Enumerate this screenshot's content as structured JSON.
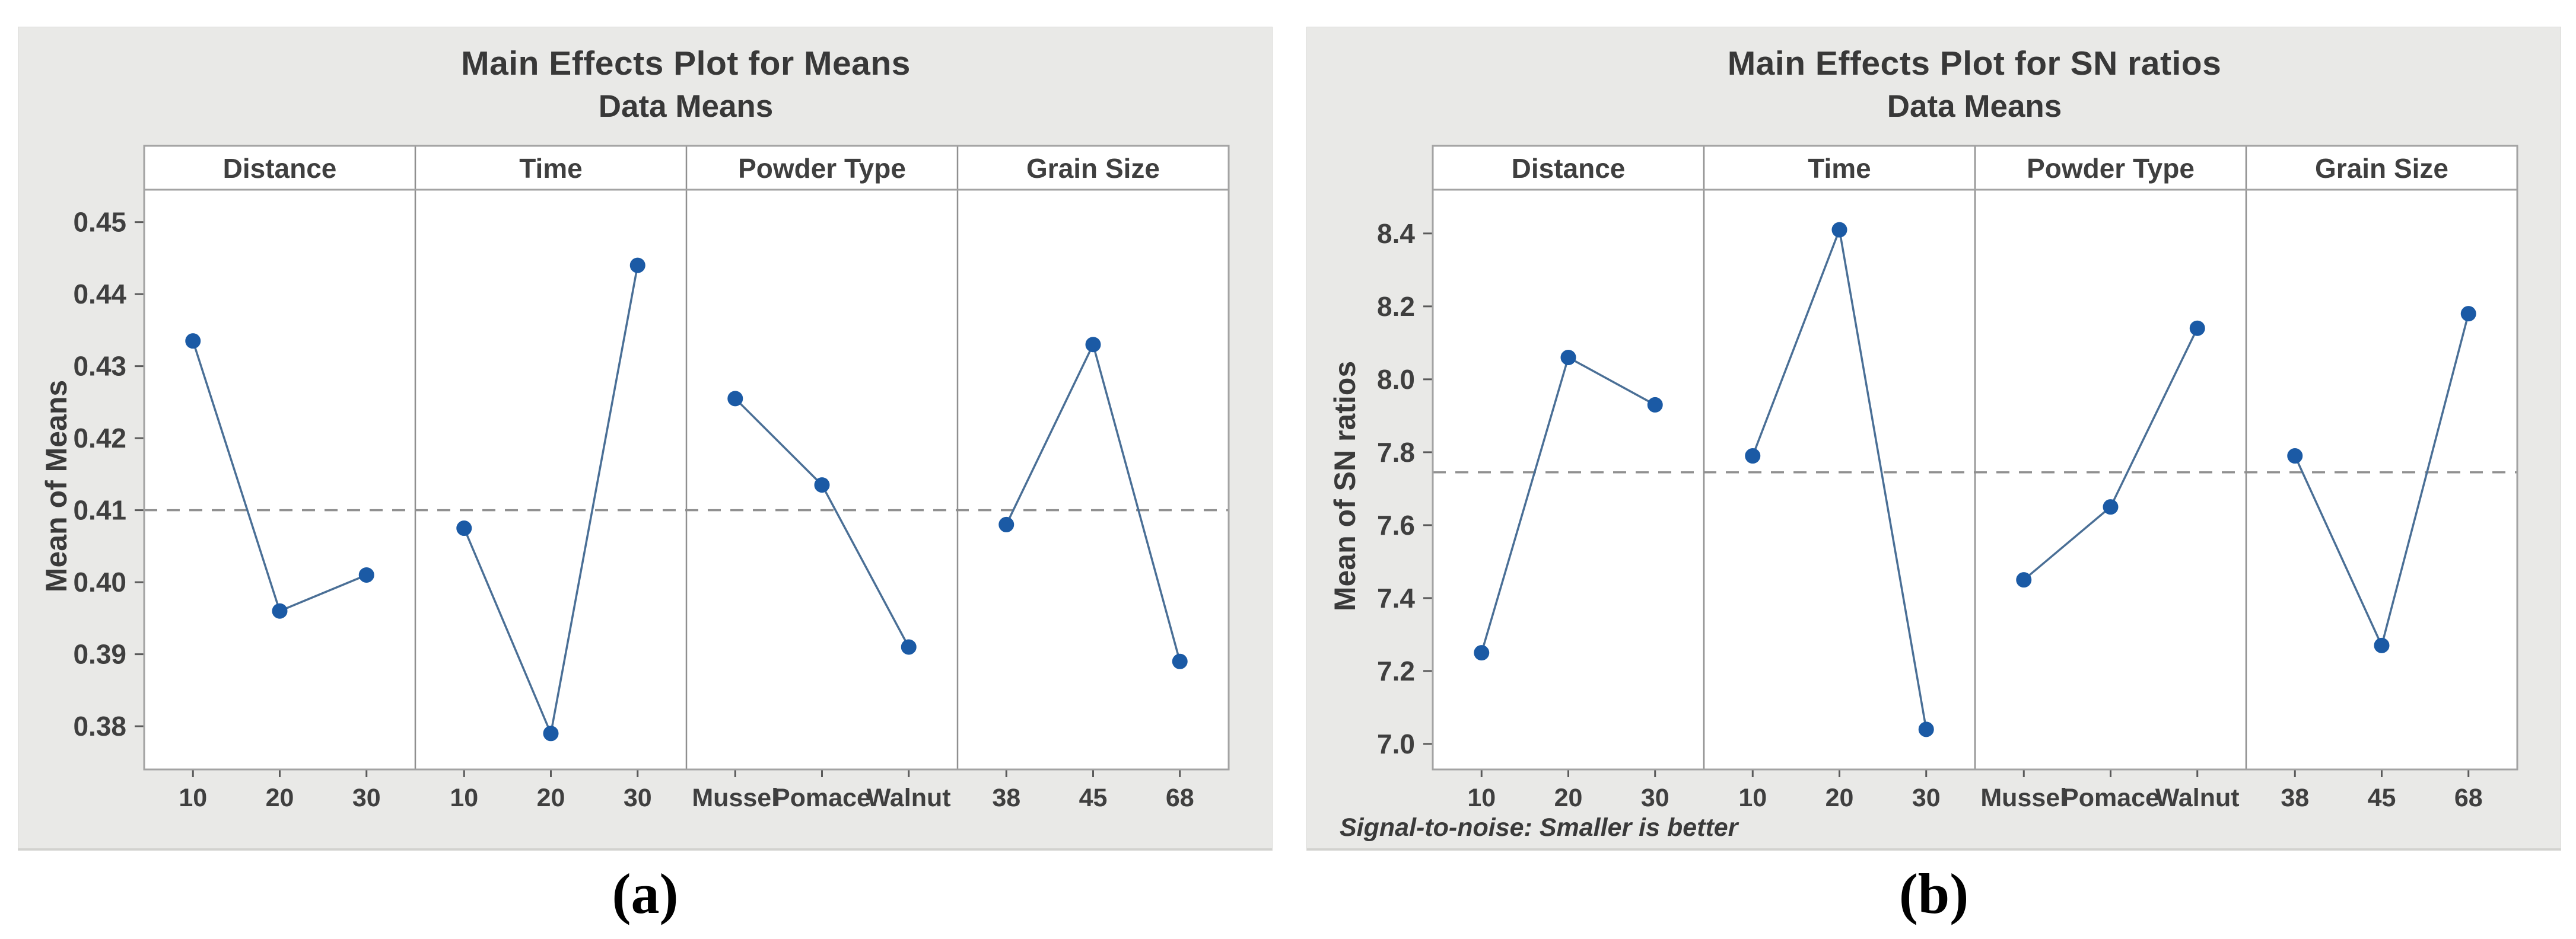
{
  "figure": {
    "caption_a": "(a)",
    "caption_b": "(b)"
  },
  "colors": {
    "marker": "#1b5aa5",
    "line": "#4a6f96",
    "mean_line": "#909090",
    "frame": "#a3a3a3",
    "separator": "#8f8f8f",
    "tick": "#5a5a5a",
    "tick_text": "#3f3f3f",
    "panel_header_text": "#3f3f3f",
    "card_bg": "#e9e9e7",
    "plot_bg": "#ffffff"
  },
  "chart_data": [
    {
      "type": "line",
      "title": "Main Effects Plot for Means",
      "subtitle": "Data Means",
      "ylabel": "Mean of Means",
      "caption": "(a)",
      "footnote": "",
      "legend": "none",
      "grid": false,
      "ylim": [
        0.374,
        0.4545
      ],
      "ytick_values": [
        0.38,
        0.39,
        0.4,
        0.41,
        0.42,
        0.43,
        0.44,
        0.45
      ],
      "ytick_labels": [
        "0.38",
        "0.39",
        "0.40",
        "0.41",
        "0.42",
        "0.43",
        "0.44",
        "0.45"
      ],
      "mean_line": 0.41,
      "panels": [
        {
          "label": "Distance",
          "categories": [
            "10",
            "20",
            "30"
          ],
          "values": [
            0.4335,
            0.396,
            0.401
          ]
        },
        {
          "label": "Time",
          "categories": [
            "10",
            "20",
            "30"
          ],
          "values": [
            0.4075,
            0.379,
            0.444
          ]
        },
        {
          "label": "Powder Type",
          "categories": [
            "Mussel",
            "Pomace",
            "Walnut"
          ],
          "values": [
            0.4255,
            0.4135,
            0.391
          ]
        },
        {
          "label": "Grain Size",
          "categories": [
            "38",
            "45",
            "68"
          ],
          "values": [
            0.408,
            0.433,
            0.389
          ]
        }
      ]
    },
    {
      "type": "line",
      "title": "Main Effects Plot for SN ratios",
      "subtitle": "Data Means",
      "ylabel": "Mean of SN ratios",
      "caption": "(b)",
      "footnote": "Signal-to-noise: Smaller is better",
      "legend": "none",
      "grid": false,
      "ylim": [
        6.93,
        8.52
      ],
      "ytick_values": [
        7.0,
        7.2,
        7.4,
        7.6,
        7.8,
        8.0,
        8.2,
        8.4
      ],
      "ytick_labels": [
        "7.0",
        "7.2",
        "7.4",
        "7.6",
        "7.8",
        "8.0",
        "8.2",
        "8.4"
      ],
      "mean_line": 7.745,
      "panels": [
        {
          "label": "Distance",
          "categories": [
            "10",
            "20",
            "30"
          ],
          "values": [
            7.25,
            8.06,
            7.93
          ]
        },
        {
          "label": "Time",
          "categories": [
            "10",
            "20",
            "30"
          ],
          "values": [
            7.79,
            8.41,
            7.04
          ]
        },
        {
          "label": "Powder Type",
          "categories": [
            "Mussel",
            "Pomace",
            "Walnut"
          ],
          "values": [
            7.45,
            7.65,
            8.14
          ]
        },
        {
          "label": "Grain Size",
          "categories": [
            "38",
            "45",
            "68"
          ],
          "values": [
            7.79,
            7.27,
            8.18
          ]
        }
      ]
    }
  ]
}
